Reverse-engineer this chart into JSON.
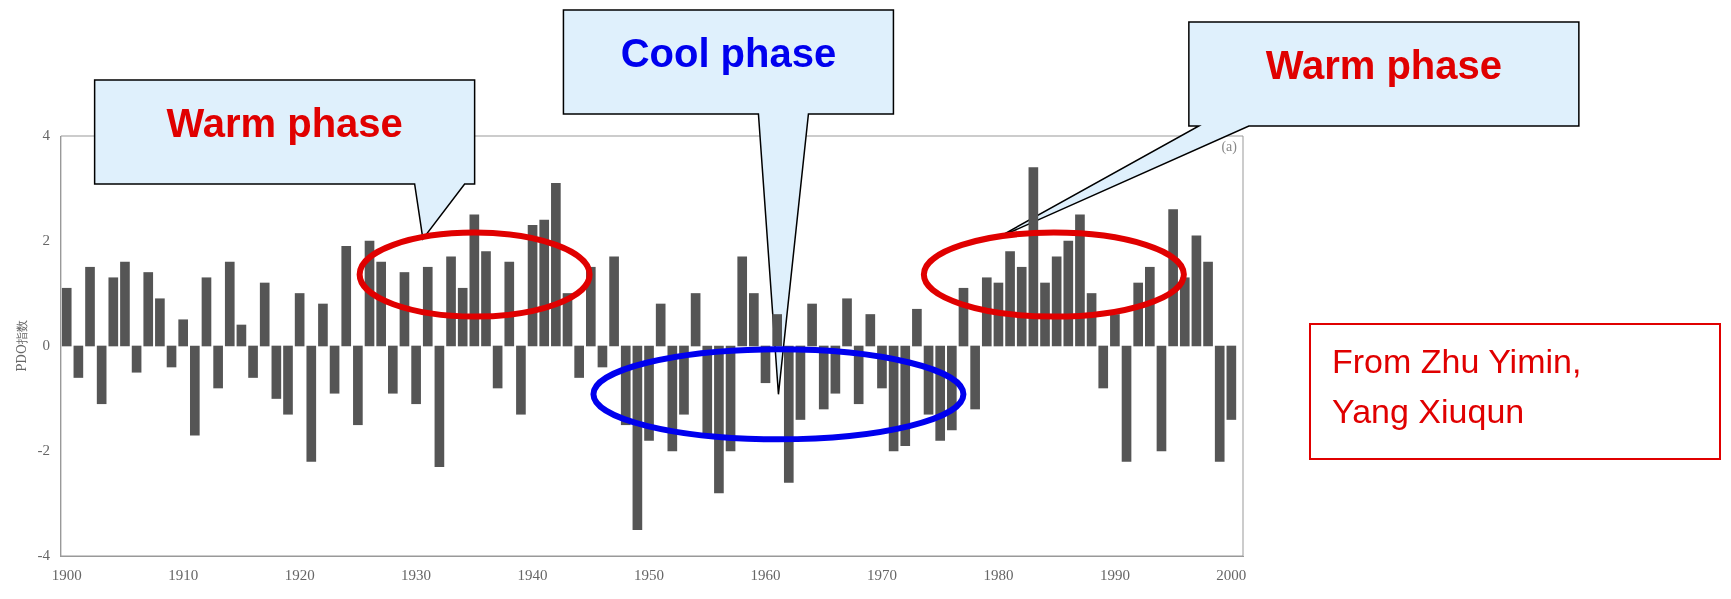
{
  "chart_data": {
    "type": "bar",
    "ylabel": "PDO指数",
    "color": "#555555",
    "x": [
      1900,
      1901,
      1902,
      1903,
      1904,
      1905,
      1906,
      1907,
      1908,
      1909,
      1910,
      1911,
      1912,
      1913,
      1914,
      1915,
      1916,
      1917,
      1918,
      1919,
      1920,
      1921,
      1922,
      1923,
      1924,
      1925,
      1926,
      1927,
      1928,
      1929,
      1930,
      1931,
      1932,
      1933,
      1934,
      1935,
      1936,
      1937,
      1938,
      1939,
      1940,
      1941,
      1942,
      1943,
      1944,
      1945,
      1946,
      1947,
      1948,
      1949,
      1950,
      1951,
      1952,
      1953,
      1954,
      1955,
      1956,
      1957,
      1958,
      1959,
      1960,
      1961,
      1962,
      1963,
      1964,
      1965,
      1966,
      1967,
      1968,
      1969,
      1970,
      1971,
      1972,
      1973,
      1974,
      1975,
      1976,
      1977,
      1978,
      1979,
      1980,
      1981,
      1982,
      1983,
      1984,
      1985,
      1986,
      1987,
      1988,
      1989,
      1990,
      1991,
      1992,
      1993,
      1994,
      1995,
      1996,
      1997,
      1998,
      1999,
      2000
    ],
    "values": [
      1.1,
      -0.6,
      1.5,
      -1.1,
      1.3,
      1.6,
      -0.5,
      1.4,
      0.9,
      -0.4,
      0.5,
      -1.7,
      1.3,
      -0.8,
      1.6,
      0.4,
      -0.6,
      1.2,
      -1.0,
      -1.3,
      1.0,
      -2.2,
      0.8,
      -0.9,
      1.9,
      -1.5,
      2.0,
      1.6,
      -0.9,
      1.4,
      -1.1,
      1.5,
      -2.3,
      1.7,
      1.1,
      2.5,
      1.8,
      -0.8,
      1.6,
      -1.3,
      2.3,
      2.4,
      3.1,
      1.0,
      -0.6,
      1.5,
      -0.4,
      1.7,
      -1.5,
      -3.5,
      -1.8,
      0.8,
      -2.0,
      -1.3,
      1.0,
      -1.7,
      -2.8,
      -2.0,
      1.7,
      1.0,
      -0.7,
      0.6,
      -2.6,
      -1.4,
      0.8,
      -1.2,
      -0.9,
      0.9,
      -1.1,
      0.6,
      -0.8,
      -2.0,
      -1.9,
      0.7,
      -1.3,
      -1.8,
      -1.6,
      1.1,
      -1.2,
      1.3,
      1.2,
      1.8,
      1.5,
      3.4,
      1.2,
      1.7,
      2.0,
      2.5,
      1.0,
      -0.8,
      0.6,
      -2.2,
      1.2,
      1.5,
      -2.0,
      2.6,
      1.3,
      2.1,
      1.6,
      -2.2,
      -1.4
    ],
    "xlim": [
      1899.5,
      2001
    ],
    "xticks": [
      1900,
      1910,
      1920,
      1930,
      1940,
      1950,
      1960,
      1970,
      1980,
      1990,
      2000
    ],
    "ylim": [
      -4,
      4
    ],
    "yticks": [
      -4,
      -2,
      0,
      2,
      4
    ],
    "annotations": [
      "Warm phase",
      "Cool phase",
      "Warm phase",
      "(a)",
      "From Zhu Yimin, Yang Xiuqun"
    ]
  }
}
